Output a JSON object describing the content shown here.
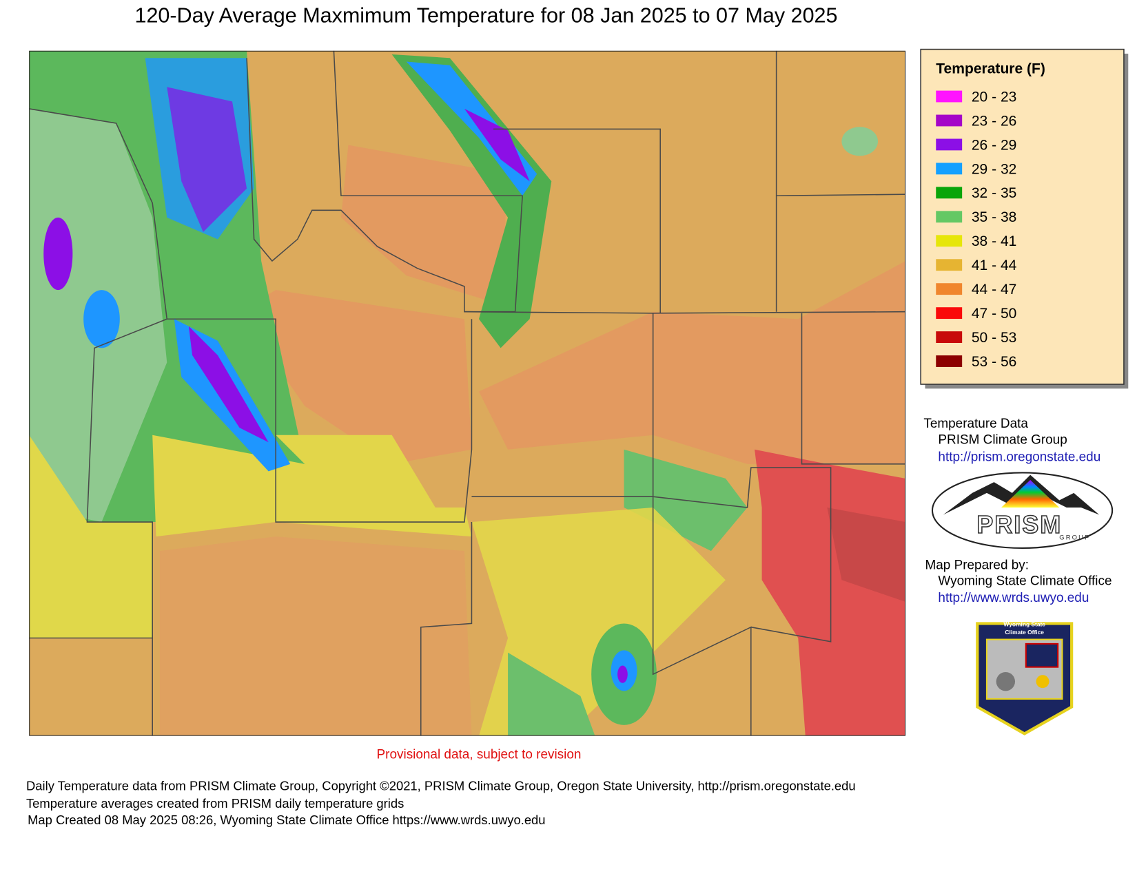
{
  "header": {
    "title": "120-Day Average Maxmimum Temperature for 08 Jan 2025 to 07 May 2025"
  },
  "legend": {
    "title": "Temperature (F)",
    "items": [
      {
        "label": "20 - 23",
        "color": "#ff14ff"
      },
      {
        "label": "23 - 26",
        "color": "#a505c8"
      },
      {
        "label": "26 - 29",
        "color": "#8c0fe6"
      },
      {
        "label": "29 - 32",
        "color": "#14a0ff"
      },
      {
        "label": "32 - 35",
        "color": "#0aa50a"
      },
      {
        "label": "35 - 38",
        "color": "#64c864"
      },
      {
        "label": "38 - 41",
        "color": "#e6e60a"
      },
      {
        "label": "41 - 44",
        "color": "#e6b432"
      },
      {
        "label": "44 - 47",
        "color": "#f0862d"
      },
      {
        "label": "47 - 50",
        "color": "#fa0a0a"
      },
      {
        "label": "50 - 53",
        "color": "#c80a0a"
      },
      {
        "label": "53 - 56",
        "color": "#8c0000"
      }
    ]
  },
  "credits": {
    "data_heading": "Temperature Data",
    "data_source": "PRISM Climate Group",
    "data_url": "http://prism.oregonstate.edu",
    "prepared_heading": "Map Prepared by:",
    "prepared_by": "Wyoming State Climate Office",
    "prepared_url": "http://www.wrds.uwyo.edu",
    "prism_logo_text": "PRISM",
    "prism_logo_sub": "GROUP",
    "shield_line1": "Wyoming State",
    "shield_line2": "Climate Office"
  },
  "notice": "Provisional data, subject to revision",
  "footer": [
    "Daily Temperature data from PRISM Climate Group, Copyright ©2021, PRISM Climate Group, Oregon State University, http://prism.oregonstate.edu",
    "Temperature averages created from PRISM daily temperature grids",
    "Map Created 08 May 2025 08:26, Wyoming State Climate Office https://www.wrds.uwyo.edu"
  ]
}
